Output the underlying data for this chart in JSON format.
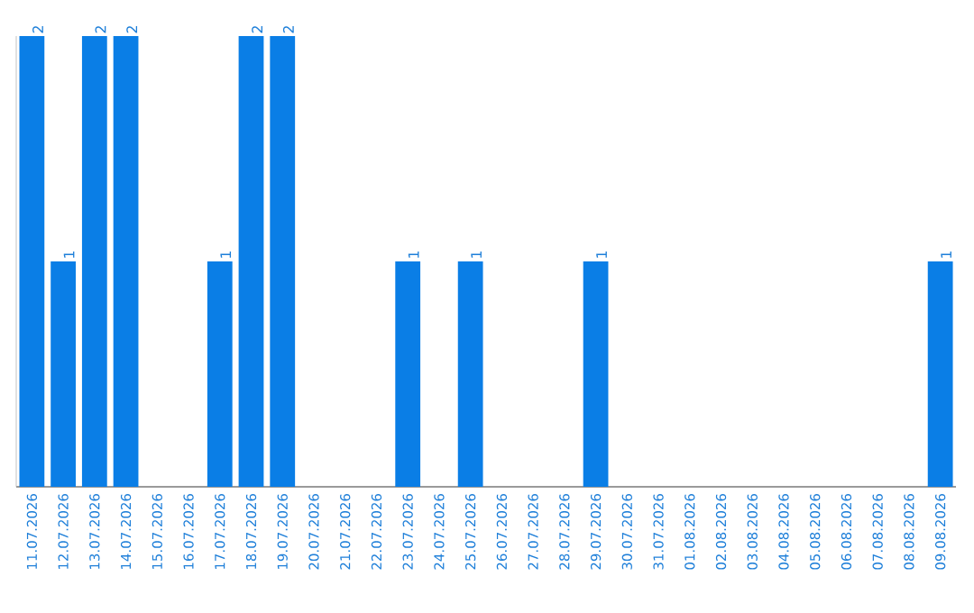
{
  "chart_data": {
    "type": "bar",
    "categories": [
      "11.07.2026",
      "12.07.2026",
      "13.07.2026",
      "14.07.2026",
      "15.07.2026",
      "16.07.2026",
      "17.07.2026",
      "18.07.2026",
      "19.07.2026",
      "20.07.2026",
      "21.07.2026",
      "22.07.2026",
      "23.07.2026",
      "24.07.2026",
      "25.07.2026",
      "26.07.2026",
      "27.07.2026",
      "28.07.2026",
      "29.07.2026",
      "30.07.2026",
      "31.07.2026",
      "01.08.2026",
      "02.08.2026",
      "03.08.2026",
      "04.08.2026",
      "05.08.2026",
      "06.08.2026",
      "07.08.2026",
      "08.08.2026",
      "09.08.2026"
    ],
    "values": [
      2,
      1,
      2,
      2,
      0,
      0,
      1,
      2,
      2,
      0,
      0,
      0,
      1,
      0,
      1,
      0,
      0,
      0,
      1,
      0,
      0,
      0,
      0,
      0,
      0,
      0,
      0,
      0,
      0,
      1
    ],
    "value_labels": [
      "2",
      "1",
      "2",
      "2",
      null,
      null,
      "1",
      "2",
      "2",
      null,
      null,
      null,
      "1",
      null,
      "1",
      null,
      null,
      null,
      "1",
      null,
      null,
      null,
      null,
      null,
      null,
      null,
      null,
      null,
      null,
      "1"
    ],
    "color": "#0a7ee6",
    "grid": false,
    "tick_labels": "x"
  }
}
